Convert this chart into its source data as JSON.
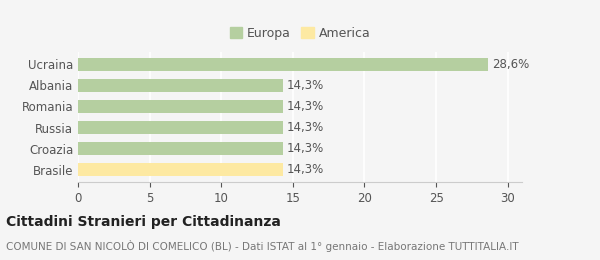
{
  "categories": [
    "Ucraina",
    "Albania",
    "Romania",
    "Russia",
    "Croazia",
    "Brasile"
  ],
  "values": [
    28.6,
    14.3,
    14.3,
    14.3,
    14.3,
    14.3
  ],
  "bar_colors": [
    "#b5cfa0",
    "#b5cfa0",
    "#b5cfa0",
    "#b5cfa0",
    "#b5cfa0",
    "#fde9a2"
  ],
  "labels": [
    "28,6%",
    "14,3%",
    "14,3%",
    "14,3%",
    "14,3%",
    "14,3%"
  ],
  "legend": [
    {
      "label": "Europa",
      "color": "#b5cfa0"
    },
    {
      "label": "America",
      "color": "#fde9a2"
    }
  ],
  "xlim": [
    0,
    31
  ],
  "xticks": [
    0,
    5,
    10,
    15,
    20,
    25,
    30
  ],
  "title": "Cittadini Stranieri per Cittadinanza",
  "subtitle": "COMUNE DI SAN NICOLÒ DI COMELICO (BL) - Dati ISTAT al 1° gennaio - Elaborazione TUTTITALIA.IT",
  "background_color": "#f5f5f5",
  "grid_color": "#ffffff",
  "label_fontsize": 8.5,
  "tick_label_fontsize": 8.5,
  "title_fontsize": 10,
  "subtitle_fontsize": 7.5
}
